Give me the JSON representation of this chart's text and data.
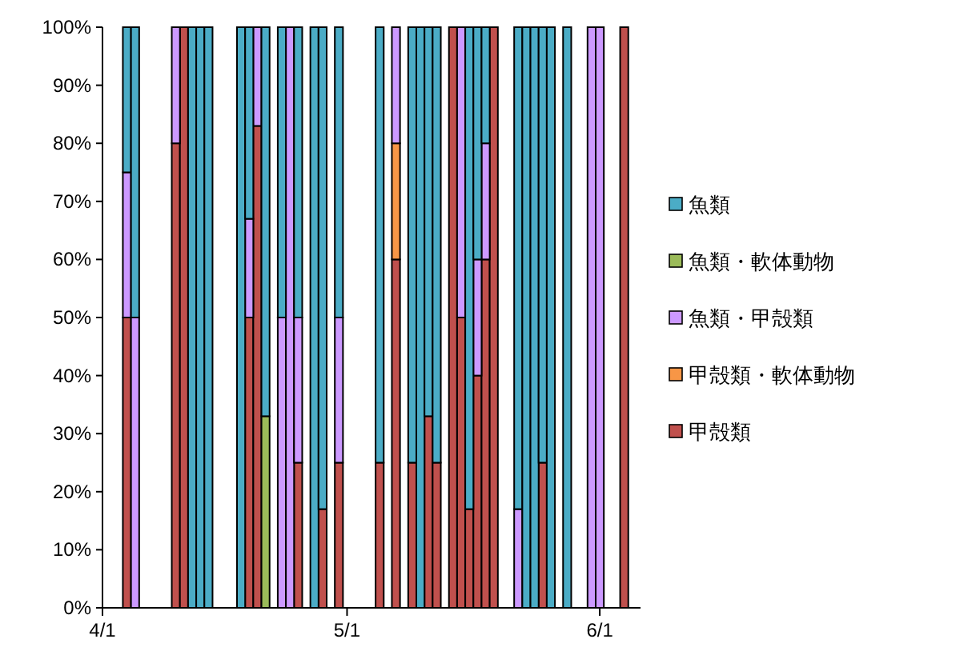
{
  "chart_data": {
    "type": "bar",
    "stacked": true,
    "legend": "right",
    "x": [
      "--04-04",
      "--04-05",
      "--04-10",
      "--04-11",
      "--04-12",
      "--04-13",
      "--04-14",
      "--04-18",
      "--04-19",
      "--04-20",
      "--04-21",
      "--04-23",
      "--04-24",
      "--04-25",
      "--04-27",
      "--04-28",
      "--04-30",
      "--05-05",
      "--05-07",
      "--05-09",
      "--05-10",
      "--05-11",
      "--05-12",
      "--05-14",
      "--05-15",
      "--05-16",
      "--05-17",
      "--05-18",
      "--05-19",
      "--05-22",
      "--05-23",
      "--05-24",
      "--05-25",
      "--05-26",
      "--05-28",
      "--05-31",
      "--06-01",
      "--06-04"
    ],
    "series": [
      {
        "name": "甲殻類",
        "color": "#c0504d",
        "values": [
          50,
          null,
          80,
          100,
          null,
          null,
          null,
          null,
          50,
          83,
          null,
          null,
          null,
          25,
          null,
          17,
          25,
          25,
          60,
          25,
          null,
          33,
          25,
          100,
          50,
          17,
          40,
          60,
          100,
          null,
          null,
          null,
          25,
          null,
          null,
          null,
          null,
          100
        ]
      },
      {
        "name": "甲殻類・軟体動物",
        "color": "#f79646",
        "values": [
          null,
          null,
          null,
          null,
          null,
          null,
          null,
          null,
          null,
          null,
          null,
          null,
          null,
          null,
          null,
          null,
          null,
          null,
          20,
          null,
          null,
          null,
          null,
          null,
          null,
          null,
          null,
          null,
          null,
          null,
          null,
          null,
          null,
          null,
          null,
          null,
          null,
          null
        ]
      },
      {
        "name": "魚類・甲殻類",
        "color": "#cc99ff",
        "values": [
          25,
          50,
          20,
          null,
          null,
          null,
          null,
          null,
          17,
          17,
          null,
          50,
          100,
          25,
          null,
          null,
          25,
          null,
          20,
          null,
          null,
          null,
          null,
          null,
          50,
          null,
          20,
          20,
          null,
          17,
          null,
          null,
          null,
          null,
          null,
          100,
          100,
          null
        ]
      },
      {
        "name": "魚類・軟体動物",
        "color": "#9bbb59",
        "values": [
          null,
          null,
          null,
          null,
          null,
          null,
          null,
          null,
          null,
          null,
          33,
          null,
          null,
          null,
          null,
          null,
          null,
          null,
          null,
          null,
          null,
          null,
          null,
          null,
          null,
          null,
          null,
          null,
          null,
          null,
          null,
          null,
          null,
          null,
          null,
          null,
          null,
          null
        ]
      },
      {
        "name": "魚類",
        "color": "#4bacc6",
        "values": [
          25,
          50,
          null,
          null,
          100,
          100,
          100,
          100,
          33,
          null,
          67,
          50,
          null,
          50,
          100,
          83,
          50,
          75,
          null,
          75,
          100,
          67,
          75,
          null,
          null,
          83,
          40,
          20,
          null,
          83,
          100,
          100,
          75,
          100,
          100,
          null,
          null,
          null
        ]
      }
    ],
    "xlim": [
      "--04-01",
      "--06-06"
    ],
    "xticks": [
      {
        "value": "--04-01",
        "label": "4/1"
      },
      {
        "value": "--05-01",
        "label": "5/1"
      },
      {
        "value": "--06-01",
        "label": "6/1"
      }
    ],
    "ylim": [
      0,
      100
    ],
    "yticks": [
      {
        "value": 0,
        "label": "0%"
      },
      {
        "value": 10,
        "label": "10%"
      },
      {
        "value": 20,
        "label": "20%"
      },
      {
        "value": 30,
        "label": "30%"
      },
      {
        "value": 40,
        "label": "40%"
      },
      {
        "value": 50,
        "label": "50%"
      },
      {
        "value": 60,
        "label": "60%"
      },
      {
        "value": 70,
        "label": "70%"
      },
      {
        "value": 80,
        "label": "80%"
      },
      {
        "value": 90,
        "label": "90%"
      },
      {
        "value": 100,
        "label": "100%"
      }
    ]
  }
}
